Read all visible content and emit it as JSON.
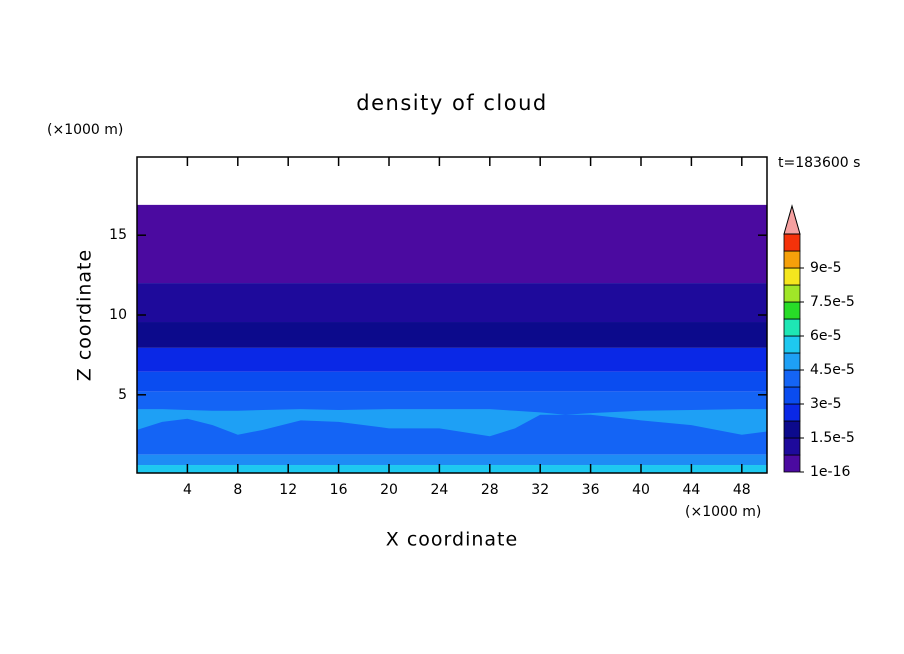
{
  "chart_data": {
    "type": "contour",
    "title": "density of cloud",
    "x_label": "X coordinate",
    "y_label": "Z coordinate",
    "x_unit": "(×1000 m)",
    "y_unit": "(×1000 m)",
    "time_label": "t=183600 s",
    "xlim": [
      0,
      50
    ],
    "ylim": [
      0.1,
      19.9
    ],
    "xticks": [
      4,
      8,
      12,
      16,
      20,
      24,
      28,
      32,
      36,
      40,
      44,
      48
    ],
    "yticks": [
      5,
      10,
      15
    ],
    "layers": [
      {
        "color": "#4b0aa0",
        "z_bottom": 12.0,
        "z_top": 16.9
      },
      {
        "color": "#1e0a9b",
        "z_bottom": 9.56,
        "z_top": 12.0
      },
      {
        "color": "#0c0a8c",
        "z_bottom": 7.94,
        "z_top": 9.56
      },
      {
        "color": "#0a28e6",
        "z_bottom": 6.44,
        "z_top": 7.94
      },
      {
        "color": "#0a4cf0",
        "z_bottom": 5.19,
        "z_top": 6.44
      },
      {
        "color": "#1464f5",
        "z_bottom": 1.25,
        "z_top": 5.19
      },
      {
        "color": "#1e8cf5",
        "z_bottom": 0.6,
        "z_top": 1.25
      },
      {
        "color": "#1ec8f0",
        "z_bottom": 0.1,
        "z_top": 0.6
      }
    ],
    "band": {
      "color": "#1ea0f5",
      "x": [
        0,
        2,
        4,
        6,
        8,
        10,
        13,
        16,
        20,
        24,
        28,
        30,
        32,
        34,
        36,
        40,
        44,
        48,
        50
      ],
      "top": [
        4.1,
        4.1,
        4.05,
        4.0,
        4.0,
        4.05,
        4.1,
        4.05,
        4.1,
        4.1,
        4.1,
        4.0,
        3.9,
        3.75,
        3.85,
        4.0,
        4.05,
        4.1,
        4.1
      ],
      "bottom": [
        2.8,
        3.3,
        3.5,
        3.1,
        2.5,
        2.8,
        3.4,
        3.3,
        2.9,
        2.9,
        2.4,
        2.9,
        3.75,
        3.75,
        3.75,
        3.4,
        3.1,
        2.5,
        2.7
      ]
    },
    "colorbar": {
      "clim": [
        0,
        0.000105
      ],
      "colors": [
        "#4b0aa0",
        "#1e0a9b",
        "#0c0a8c",
        "#0a28e6",
        "#0a4cf0",
        "#1464f5",
        "#1ea0f5",
        "#1ec8f0",
        "#1ee6b4",
        "#28dc28",
        "#a0e628",
        "#f5e61e",
        "#f5a00a",
        "#f5320a"
      ],
      "extend_color": "#f5a0a0",
      "ticks": [
        {
          "value": 1e-16,
          "label": "1e-16"
        },
        {
          "value": 1.5e-05,
          "label": "1.5e-5"
        },
        {
          "value": 3e-05,
          "label": "3e-5"
        },
        {
          "value": 4.5e-05,
          "label": "4.5e-5"
        },
        {
          "value": 6e-05,
          "label": "6e-5"
        },
        {
          "value": 7.5e-05,
          "label": "7.5e-5"
        },
        {
          "value": 9e-05,
          "label": "9e-5"
        }
      ]
    }
  }
}
